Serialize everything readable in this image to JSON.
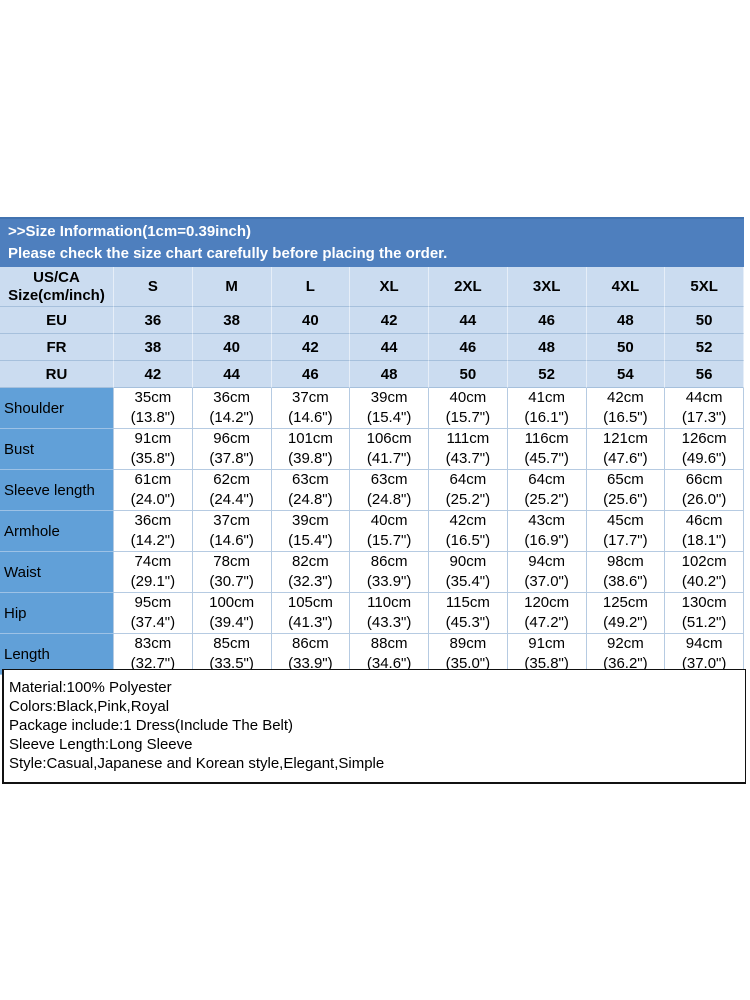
{
  "banner": {
    "title": ">>Size Information(1cm=0.39inch)",
    "subtitle": "Please check the size chart carefully before placing the order."
  },
  "size_table": {
    "corner_label_line1": "US/CA",
    "corner_label_line2": "Size(cm/inch)",
    "sizes": [
      "S",
      "M",
      "L",
      "XL",
      "2XL",
      "3XL",
      "4XL",
      "5XL"
    ],
    "conversion_rows": [
      {
        "label": "EU",
        "values": [
          "36",
          "38",
          "40",
          "42",
          "44",
          "46",
          "48",
          "50"
        ]
      },
      {
        "label": "FR",
        "values": [
          "38",
          "40",
          "42",
          "44",
          "46",
          "48",
          "50",
          "52"
        ]
      },
      {
        "label": "RU",
        "values": [
          "42",
          "44",
          "46",
          "48",
          "50",
          "52",
          "54",
          "56"
        ]
      }
    ],
    "measurement_rows": [
      {
        "label": "Shoulder",
        "values": [
          [
            "35cm",
            "(13.8\")"
          ],
          [
            "36cm",
            "(14.2\")"
          ],
          [
            "37cm",
            "(14.6\")"
          ],
          [
            "39cm",
            "(15.4\")"
          ],
          [
            "40cm",
            "(15.7\")"
          ],
          [
            "41cm",
            "(16.1\")"
          ],
          [
            "42cm",
            "(16.5\")"
          ],
          [
            "44cm",
            "(17.3\")"
          ]
        ]
      },
      {
        "label": "Bust",
        "values": [
          [
            "91cm",
            "(35.8\")"
          ],
          [
            "96cm",
            "(37.8\")"
          ],
          [
            "101cm",
            "(39.8\")"
          ],
          [
            "106cm",
            "(41.7\")"
          ],
          [
            "111cm",
            "(43.7\")"
          ],
          [
            "116cm",
            "(45.7\")"
          ],
          [
            "121cm",
            "(47.6\")"
          ],
          [
            "126cm",
            "(49.6\")"
          ]
        ]
      },
      {
        "label": "Sleeve length",
        "values": [
          [
            "61cm",
            "(24.0\")"
          ],
          [
            "62cm",
            "(24.4\")"
          ],
          [
            "63cm",
            "(24.8\")"
          ],
          [
            "63cm",
            "(24.8\")"
          ],
          [
            "64cm",
            "(25.2\")"
          ],
          [
            "64cm",
            "(25.2\")"
          ],
          [
            "65cm",
            "(25.6\")"
          ],
          [
            "66cm",
            "(26.0\")"
          ]
        ]
      },
      {
        "label": "Armhole",
        "values": [
          [
            "36cm",
            "(14.2\")"
          ],
          [
            "37cm",
            "(14.6\")"
          ],
          [
            "39cm",
            "(15.4\")"
          ],
          [
            "40cm",
            "(15.7\")"
          ],
          [
            "42cm",
            "(16.5\")"
          ],
          [
            "43cm",
            "(16.9\")"
          ],
          [
            "45cm",
            "(17.7\")"
          ],
          [
            "46cm",
            "(18.1\")"
          ]
        ]
      },
      {
        "label": "Waist",
        "values": [
          [
            "74cm",
            "(29.1\")"
          ],
          [
            "78cm",
            "(30.7\")"
          ],
          [
            "82cm",
            "(32.3\")"
          ],
          [
            "86cm",
            "(33.9\")"
          ],
          [
            "90cm",
            "(35.4\")"
          ],
          [
            "94cm",
            "(37.0\")"
          ],
          [
            "98cm",
            "(38.6\")"
          ],
          [
            "102cm",
            "(40.2\")"
          ]
        ]
      },
      {
        "label": "Hip",
        "values": [
          [
            "95cm",
            "(37.4\")"
          ],
          [
            "100cm",
            "(39.4\")"
          ],
          [
            "105cm",
            "(41.3\")"
          ],
          [
            "110cm",
            "(43.3\")"
          ],
          [
            "115cm",
            "(45.3\")"
          ],
          [
            "120cm",
            "(47.2\")"
          ],
          [
            "125cm",
            "(49.2\")"
          ],
          [
            "130cm",
            "(51.2\")"
          ]
        ]
      },
      {
        "label": "Length",
        "values": [
          [
            "83cm",
            "(32.7\")"
          ],
          [
            "85cm",
            "(33.5\")"
          ],
          [
            "86cm",
            "(33.9\")"
          ],
          [
            "88cm",
            "(34.6\")"
          ],
          [
            "89cm",
            "(35.0\")"
          ],
          [
            "91cm",
            "(35.8\")"
          ],
          [
            "92cm",
            "(36.2\")"
          ],
          [
            "94cm",
            "(37.0\")"
          ]
        ]
      }
    ]
  },
  "product_info": {
    "lines": [
      "Material:100% Polyester",
      "Colors:Black,Pink,Royal",
      "Package include:1 Dress(Include The Belt)",
      "Sleeve Length:Long Sleeve",
      "Style:Casual,Japanese and Korean style,Elegant,Simple"
    ]
  },
  "colors": {
    "banner_bg": "#4e7fbe",
    "banner_text": "#ffffff",
    "header_row_bg": "#cbdcf0",
    "label_column_bg": "#61a0d8",
    "table_border": "#b6cbe2",
    "info_box_border": "#111111",
    "text": "#000000"
  }
}
